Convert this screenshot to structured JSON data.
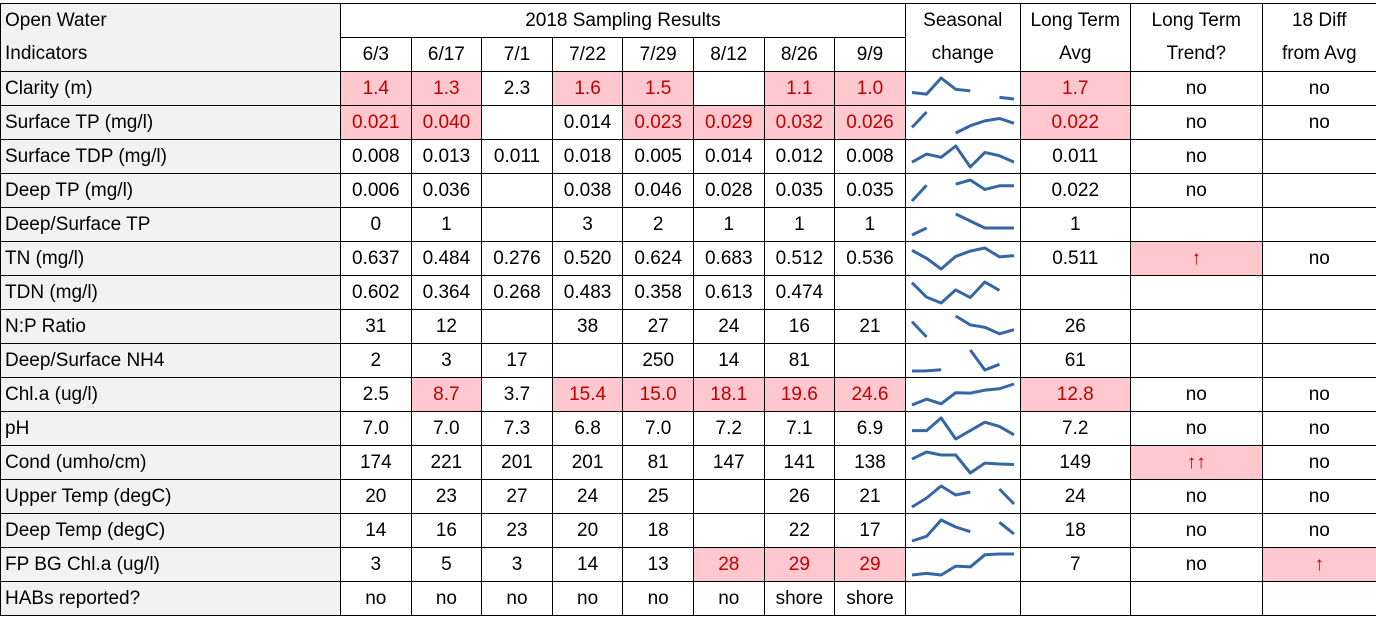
{
  "header": {
    "indicator": [
      "Open Water",
      "Indicators"
    ],
    "group": "2018 Sampling Results",
    "dates": [
      "6/3",
      "6/17",
      "7/1",
      "7/22",
      "7/29",
      "8/12",
      "8/26",
      "9/9"
    ],
    "seasonal": [
      "Seasonal",
      "change"
    ],
    "avg": [
      "Long Term",
      "Avg"
    ],
    "trend": [
      "Long Term",
      "Trend?"
    ],
    "diff": [
      "18 Diff",
      "from Avg"
    ]
  },
  "rows": [
    {
      "label": "Clarity (m)",
      "values": [
        "1.4",
        "1.3",
        "2.3",
        "1.6",
        "1.5",
        null,
        "1.1",
        "1.0"
      ],
      "avg": "1.7",
      "trend": "no",
      "diff": "no",
      "flagged": [
        0,
        1,
        3,
        4,
        6,
        7,
        8
      ]
    },
    {
      "label": "Surface TP (mg/l)",
      "values": [
        "0.021",
        "0.040",
        null,
        "0.014",
        "0.023",
        "0.029",
        "0.032",
        "0.026"
      ],
      "avg": "0.022",
      "trend": "no",
      "diff": "no",
      "flagged": [
        0,
        1,
        4,
        5,
        6,
        7,
        8
      ]
    },
    {
      "label": "Surface TDP (mg/l)",
      "values": [
        "0.008",
        "0.013",
        "0.011",
        "0.018",
        "0.005",
        "0.014",
        "0.012",
        "0.008"
      ],
      "avg": "0.011",
      "trend": "no",
      "diff": null,
      "flagged": []
    },
    {
      "label": "Deep TP (mg/l)",
      "values": [
        "0.006",
        "0.036",
        null,
        "0.038",
        "0.046",
        "0.028",
        "0.035",
        "0.035"
      ],
      "avg": "0.022",
      "trend": "no",
      "diff": null,
      "flagged": []
    },
    {
      "label": "Deep/Surface TP",
      "values": [
        "0",
        "1",
        null,
        "3",
        "2",
        "1",
        "1",
        "1"
      ],
      "avg": "1",
      "trend": null,
      "diff": null,
      "flagged": []
    },
    {
      "label": "TN (mg/l)",
      "values": [
        "0.637",
        "0.484",
        "0.276",
        "0.520",
        "0.624",
        "0.683",
        "0.512",
        "0.536"
      ],
      "avg": "0.511",
      "trend": "↑",
      "diff": "no",
      "flagged": [
        9
      ]
    },
    {
      "label": "TDN (mg/l)",
      "values": [
        "0.602",
        "0.364",
        "0.268",
        "0.483",
        "0.358",
        "0.613",
        "0.474",
        null
      ],
      "avg": null,
      "trend": null,
      "diff": null,
      "flagged": []
    },
    {
      "label": "N:P Ratio",
      "values": [
        "31",
        "12",
        null,
        "38",
        "27",
        "24",
        "16",
        "21"
      ],
      "avg": "26",
      "trend": null,
      "diff": null,
      "flagged": []
    },
    {
      "label": "Deep/Surface NH4",
      "values": [
        "2",
        "3",
        "17",
        null,
        "250",
        "14",
        "81",
        null
      ],
      "avg": "61",
      "trend": null,
      "diff": null,
      "flagged": []
    },
    {
      "label": "Chl.a (ug/l)",
      "values": [
        "2.5",
        "8.7",
        "3.7",
        "15.4",
        "15.0",
        "18.1",
        "19.6",
        "24.6"
      ],
      "avg": "12.8",
      "trend": "no",
      "diff": "no",
      "flagged": [
        1,
        3,
        4,
        5,
        6,
        7,
        8
      ]
    },
    {
      "label": "pH",
      "values": [
        "7.0",
        "7.0",
        "7.3",
        "6.8",
        "7.0",
        "7.2",
        "7.1",
        "6.9"
      ],
      "avg": "7.2",
      "trend": "no",
      "diff": "no",
      "flagged": []
    },
    {
      "label": "Cond (umho/cm)",
      "values": [
        "174",
        "221",
        "201",
        "201",
        "81",
        "147",
        "141",
        "138"
      ],
      "avg": "149",
      "trend": "↑↑",
      "diff": "no",
      "flagged": [
        9
      ]
    },
    {
      "label": "Upper Temp (degC)",
      "values": [
        "20",
        "23",
        "27",
        "24",
        "25",
        null,
        "26",
        "21"
      ],
      "avg": "24",
      "trend": "no",
      "diff": "no",
      "flagged": []
    },
    {
      "label": "Deep Temp (degC)",
      "values": [
        "14",
        "16",
        "23",
        "20",
        "18",
        null,
        "22",
        "17"
      ],
      "avg": "18",
      "trend": "no",
      "diff": "no",
      "flagged": []
    },
    {
      "label": "FP BG Chl.a (ug/l)",
      "values": [
        "3",
        "5",
        "3",
        "14",
        "13",
        "28",
        "29",
        "29"
      ],
      "avg": "7",
      "trend": "no",
      "diff": "↑",
      "flagged": [
        5,
        6,
        7,
        10
      ]
    },
    {
      "label": "HABs reported?",
      "values": [
        "no",
        "no",
        "no",
        "no",
        "no",
        "no",
        "shore",
        "shore"
      ],
      "avg": null,
      "trend": null,
      "diff": null,
      "flagged": []
    }
  ]
}
